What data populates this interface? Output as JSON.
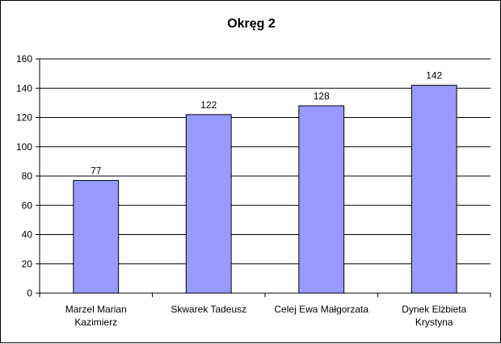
{
  "chart_data": {
    "type": "bar",
    "title": "Okręg 2",
    "categories": [
      [
        "Marzel Marian",
        "Kazimierz"
      ],
      [
        "Skwarek Tadeusz"
      ],
      [
        "Celej Ewa Małgorzata"
      ],
      [
        "Dynek Elżbieta",
        "Krystyna"
      ]
    ],
    "values": [
      77,
      122,
      128,
      142
    ],
    "data_labels": [
      "77",
      "122",
      "128",
      "142"
    ],
    "ylim": [
      0,
      160
    ],
    "y_ticks": [
      "0",
      "20",
      "40",
      "60",
      "80",
      "100",
      "120",
      "140",
      "160"
    ],
    "xlabel": "",
    "ylabel": "",
    "grid": true,
    "legend": "none",
    "colors": {
      "bar_fill": "#9999FF",
      "bar_stroke": "#000000",
      "grid": "#000000",
      "axis": "#000000"
    }
  }
}
